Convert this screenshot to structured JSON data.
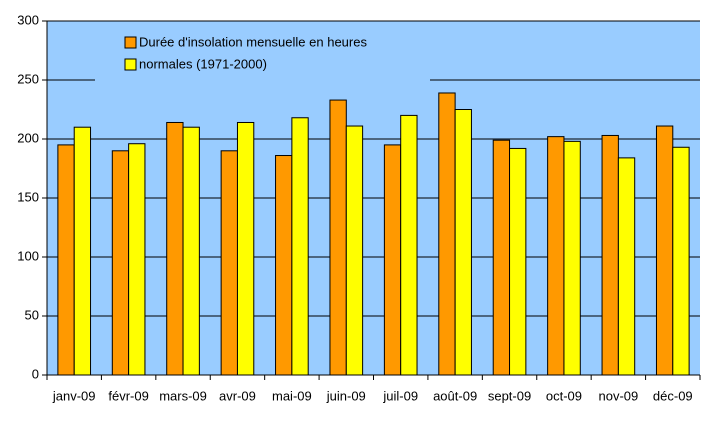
{
  "chart_data": {
    "type": "bar",
    "categories": [
      "janv-09",
      "févr-09",
      "mars-09",
      "avr-09",
      "mai-09",
      "juin-09",
      "juil-09",
      "août-09",
      "sept-09",
      "oct-09",
      "nov-09",
      "déc-09"
    ],
    "series": [
      {
        "name": "Durée d'insolation mensuelle en heures",
        "color": "#ff9900",
        "values": [
          195,
          190,
          214,
          190,
          186,
          233,
          195,
          239,
          199,
          202,
          203,
          211
        ]
      },
      {
        "name": "normales (1971-2000)",
        "color": "#ffff00",
        "values": [
          210,
          196,
          210,
          214,
          218,
          211,
          220,
          225,
          192,
          198,
          184,
          193
        ]
      }
    ],
    "ylim": [
      0,
      300
    ],
    "yticks": [
      0,
      50,
      100,
      150,
      200,
      250,
      300
    ],
    "grid": true,
    "legend": "top-left"
  }
}
